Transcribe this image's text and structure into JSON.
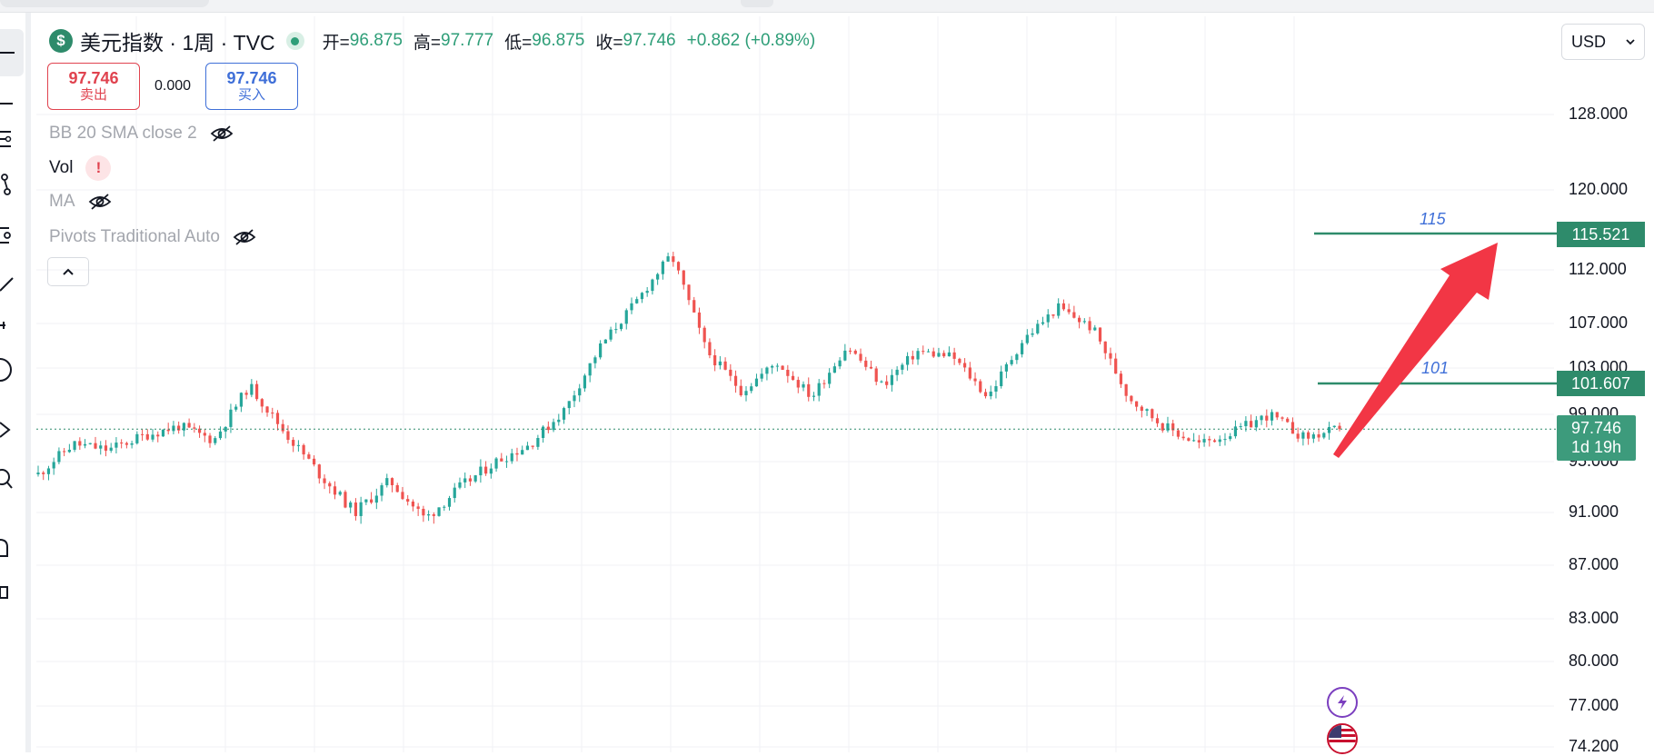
{
  "header": {
    "symbol_logo": "$",
    "symbol_title": "美元指数 · 1周 · TVC",
    "ohlc": [
      {
        "k": "开=",
        "v": "96.875"
      },
      {
        "k": "高=",
        "v": "97.777"
      },
      {
        "k": "低=",
        "v": "96.875"
      },
      {
        "k": "收=",
        "v": "97.746"
      }
    ],
    "change": "+0.862 (+0.89%)"
  },
  "trade": {
    "sell_price": "97.746",
    "sell_label": "卖出",
    "spread": "0.000",
    "buy_price": "97.746",
    "buy_label": "买入"
  },
  "indicators": [
    {
      "label": "BB 20 SMA close 2",
      "status": "hidden"
    },
    {
      "label": "Vol",
      "status": "error"
    },
    {
      "label": "MA",
      "status": "hidden"
    },
    {
      "label": "Pivots Traditional Auto",
      "status": "hidden"
    }
  ],
  "currency": {
    "value": "USD"
  },
  "price_axis": {
    "labels": [
      "128.000",
      "120.000",
      "112.000",
      "107.000",
      "103.000",
      "99.000",
      "95.000",
      "91.000",
      "87.000",
      "83.000",
      "80.000",
      "77.000",
      "74.200"
    ]
  },
  "horizontal_lines": [
    {
      "label": "115",
      "price_tag": "115.521",
      "color": "#2e8b6b"
    },
    {
      "label": "101",
      "price_tag": "101.607",
      "color": "#2e8b6b"
    }
  ],
  "last_price": {
    "value": "97.746",
    "countdown": "1d 19h"
  },
  "colors": {
    "up": "#26a69a",
    "down": "#ef5350",
    "annotation_arrow": "#f23645",
    "accent": "#2e8b6b"
  },
  "icons": {
    "event_flash": "lightning-icon",
    "event_flag": "us-flag-icon"
  },
  "chart_data": {
    "type": "candlestick",
    "series_shape_anchors": [
      {
        "price": 94.0
      },
      {
        "price": 96.5
      },
      {
        "price": 96.0
      },
      {
        "price": 97.2
      },
      {
        "price": 98.0
      },
      {
        "price": 96.8
      },
      {
        "price": 101.5
      },
      {
        "price": 97.5
      },
      {
        "price": 94.0
      },
      {
        "price": 91.0
      },
      {
        "price": 93.5
      },
      {
        "price": 90.5
      },
      {
        "price": 93.0
      },
      {
        "price": 95.0
      },
      {
        "price": 96.5
      },
      {
        "price": 99.5
      },
      {
        "price": 105.0
      },
      {
        "price": 109.0
      },
      {
        "price": 113.5
      },
      {
        "price": 104.5
      },
      {
        "price": 101.0
      },
      {
        "price": 103.5
      },
      {
        "price": 100.5
      },
      {
        "price": 105.0
      },
      {
        "price": 101.5
      },
      {
        "price": 104.5
      },
      {
        "price": 104.0
      },
      {
        "price": 100.5
      },
      {
        "price": 105.5
      },
      {
        "price": 108.5
      },
      {
        "price": 106.5
      },
      {
        "price": 100.5
      },
      {
        "price": 98.0
      },
      {
        "price": 96.5
      },
      {
        "price": 97.5
      },
      {
        "price": 99.0
      },
      {
        "price": 97.0
      },
      {
        "price": 97.746
      }
    ],
    "last_close": 97.746
  }
}
